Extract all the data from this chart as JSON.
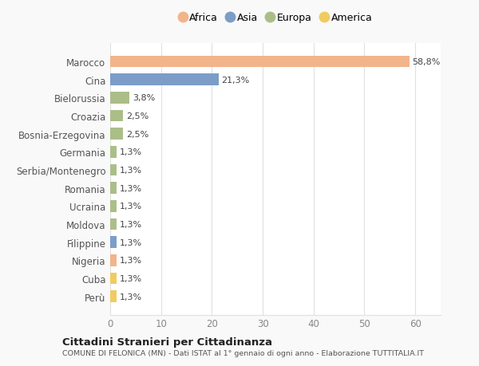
{
  "countries": [
    "Marocco",
    "Cina",
    "Bielorussia",
    "Croazia",
    "Bosnia-Erzegovina",
    "Germania",
    "Serbia/Montenegro",
    "Romania",
    "Ucraina",
    "Moldova",
    "Filippine",
    "Nigeria",
    "Cuba",
    "Perù"
  ],
  "values": [
    58.8,
    21.3,
    3.8,
    2.5,
    2.5,
    1.3,
    1.3,
    1.3,
    1.3,
    1.3,
    1.3,
    1.3,
    1.3,
    1.3
  ],
  "labels": [
    "58,8%",
    "21,3%",
    "3,8%",
    "2,5%",
    "2,5%",
    "1,3%",
    "1,3%",
    "1,3%",
    "1,3%",
    "1,3%",
    "1,3%",
    "1,3%",
    "1,3%",
    "1,3%"
  ],
  "continents": [
    "Africa",
    "Asia",
    "Europa",
    "Europa",
    "Europa",
    "Europa",
    "Europa",
    "Europa",
    "Europa",
    "Europa",
    "Asia",
    "Africa",
    "America",
    "America"
  ],
  "colors": {
    "Africa": "#F2B48A",
    "Asia": "#7B9DC8",
    "Europa": "#ABBE88",
    "America": "#F0CC60"
  },
  "xlim": [
    0,
    65
  ],
  "xticks": [
    0,
    10,
    20,
    30,
    40,
    50,
    60
  ],
  "title1": "Cittadini Stranieri per Cittadinanza",
  "title2": "COMUNE DI FELONICA (MN) - Dati ISTAT al 1° gennaio di ogni anno - Elaborazione TUTTITALIA.IT",
  "background_color": "#f9f9f9",
  "bar_area_color": "#ffffff",
  "grid_color": "#e0e0e0",
  "legend_order": [
    "Africa",
    "Asia",
    "Europa",
    "America"
  ]
}
